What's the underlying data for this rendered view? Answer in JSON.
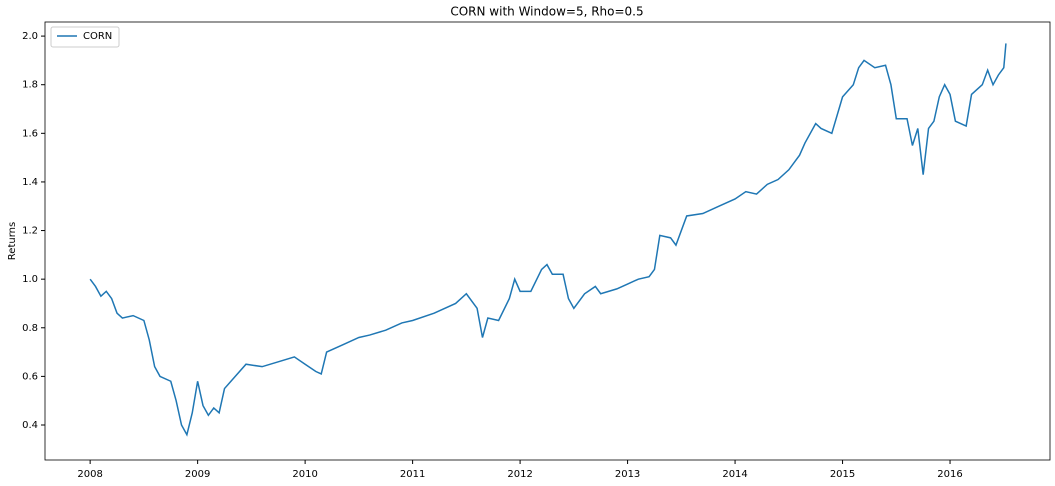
{
  "chart_data": {
    "type": "line",
    "title": "CORN with Window=5, Rho=0.5",
    "y_label": "Returns",
    "legend": "upper left",
    "grid": false,
    "xlim": [
      2007.58,
      2016.93
    ],
    "xticks": [
      2008,
      2009,
      2010,
      2011,
      2012,
      2013,
      2014,
      2015,
      2016
    ],
    "ylim": [
      0.256,
      2.058
    ],
    "yticks": [
      0.4,
      0.6,
      0.8,
      {
        "value": 1,
        "label": "1.0"
      },
      1.2,
      1.4,
      1.6,
      1.8,
      {
        "value": 2,
        "label": "2.0"
      }
    ],
    "x": [
      2008.0,
      2008.05,
      2008.1,
      2008.15,
      2008.2,
      2008.25,
      2008.3,
      2008.4,
      2008.5,
      2008.55,
      2008.6,
      2008.65,
      2008.75,
      2008.8,
      2008.85,
      2008.9,
      2008.95,
      2009.0,
      2009.05,
      2009.1,
      2009.15,
      2009.2,
      2009.25,
      2009.35,
      2009.45,
      2009.6,
      2009.75,
      2009.9,
      2010.0,
      2010.1,
      2010.15,
      2010.2,
      2010.35,
      2010.5,
      2010.6,
      2010.75,
      2010.9,
      2011.0,
      2011.2,
      2011.4,
      2011.5,
      2011.6,
      2011.65,
      2011.7,
      2011.8,
      2011.9,
      2011.95,
      2012.0,
      2012.1,
      2012.2,
      2012.25,
      2012.3,
      2012.4,
      2012.45,
      2012.5,
      2012.6,
      2012.7,
      2012.75,
      2012.9,
      2013.0,
      2013.1,
      2013.2,
      2013.25,
      2013.3,
      2013.4,
      2013.45,
      2013.55,
      2013.7,
      2013.85,
      2014.0,
      2014.1,
      2014.2,
      2014.3,
      2014.4,
      2014.5,
      2014.6,
      2014.65,
      2014.75,
      2014.8,
      2014.9,
      2015.0,
      2015.1,
      2015.15,
      2015.2,
      2015.3,
      2015.4,
      2015.45,
      2015.5,
      2015.6,
      2015.65,
      2015.7,
      2015.75,
      2015.8,
      2015.85,
      2015.9,
      2015.95,
      2016.0,
      2016.05,
      2016.15,
      2016.2,
      2016.3,
      2016.35,
      2016.4,
      2016.45,
      2016.5,
      2016.52
    ],
    "series": [
      {
        "name": "CORN",
        "color": "#1f77b4",
        "values": [
          1.0,
          0.97,
          0.93,
          0.95,
          0.92,
          0.86,
          0.84,
          0.85,
          0.83,
          0.75,
          0.64,
          0.6,
          0.58,
          0.5,
          0.4,
          0.36,
          0.45,
          0.58,
          0.48,
          0.44,
          0.47,
          0.45,
          0.55,
          0.6,
          0.65,
          0.64,
          0.66,
          0.68,
          0.65,
          0.62,
          0.61,
          0.7,
          0.73,
          0.76,
          0.77,
          0.79,
          0.82,
          0.83,
          0.86,
          0.9,
          0.94,
          0.88,
          0.76,
          0.84,
          0.83,
          0.92,
          1.0,
          0.95,
          0.95,
          1.04,
          1.06,
          1.02,
          1.02,
          0.92,
          0.88,
          0.94,
          0.97,
          0.94,
          0.96,
          0.98,
          1.0,
          1.01,
          1.04,
          1.18,
          1.17,
          1.14,
          1.26,
          1.27,
          1.3,
          1.33,
          1.36,
          1.35,
          1.39,
          1.41,
          1.45,
          1.51,
          1.56,
          1.64,
          1.62,
          1.6,
          1.75,
          1.8,
          1.87,
          1.9,
          1.87,
          1.88,
          1.8,
          1.66,
          1.66,
          1.55,
          1.62,
          1.43,
          1.62,
          1.65,
          1.75,
          1.8,
          1.76,
          1.65,
          1.63,
          1.76,
          1.8,
          1.86,
          1.8,
          1.84,
          1.87,
          1.97
        ]
      }
    ]
  }
}
